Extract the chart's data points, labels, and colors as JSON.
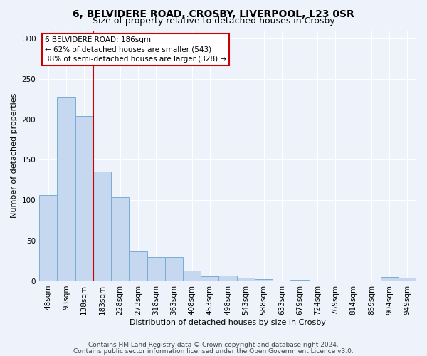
{
  "title1": "6, BELVIDERE ROAD, CROSBY, LIVERPOOL, L23 0SR",
  "title2": "Size of property relative to detached houses in Crosby",
  "xlabel": "Distribution of detached houses by size in Crosby",
  "ylabel": "Number of detached properties",
  "bar_labels": [
    "48sqm",
    "93sqm",
    "138sqm",
    "183sqm",
    "228sqm",
    "273sqm",
    "318sqm",
    "363sqm",
    "408sqm",
    "453sqm",
    "498sqm",
    "543sqm",
    "588sqm",
    "633sqm",
    "679sqm",
    "724sqm",
    "769sqm",
    "814sqm",
    "859sqm",
    "904sqm",
    "949sqm"
  ],
  "bar_values": [
    106,
    228,
    204,
    135,
    104,
    37,
    30,
    30,
    13,
    6,
    7,
    4,
    3,
    0,
    2,
    0,
    0,
    0,
    0,
    5,
    4
  ],
  "bar_color": "#c5d8f0",
  "bar_edge_color": "#7aadd4",
  "red_line_bin_index": 3,
  "annotation_text": "6 BELVIDERE ROAD: 186sqm\n← 62% of detached houses are smaller (543)\n38% of semi-detached houses are larger (328) →",
  "annotation_box_color": "#ffffff",
  "annotation_box_edge_color": "#cc0000",
  "red_line_color": "#cc0000",
  "ylim": [
    0,
    310
  ],
  "yticks": [
    0,
    50,
    100,
    150,
    200,
    250,
    300
  ],
  "footer1": "Contains HM Land Registry data © Crown copyright and database right 2024.",
  "footer2": "Contains public sector information licensed under the Open Government Licence v3.0.",
  "bg_color": "#edf2fb",
  "grid_color": "#ffffff",
  "title1_fontsize": 10,
  "title2_fontsize": 9,
  "axis_fontsize": 8,
  "tick_fontsize": 7.5,
  "footer_fontsize": 6.5
}
